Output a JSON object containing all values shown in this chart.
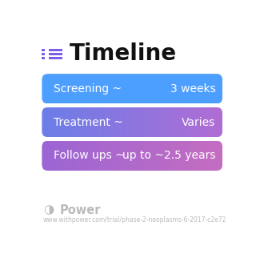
{
  "title": "Timeline",
  "title_fontsize": 20,
  "title_fontweight": "bold",
  "title_color": "#111111",
  "icon_color": "#7c5ce8",
  "background_color": "#ffffff",
  "rows": [
    {
      "label": "Screening ~",
      "value": "3 weeks",
      "color_left": "#4d9fff",
      "color_right": "#4d9fff"
    },
    {
      "label": "Treatment ~",
      "value": "Varies",
      "color_left": "#6b7de8",
      "color_right": "#b06cd4"
    },
    {
      "label": "Follow ups ~",
      "value": "up to ~2.5 years",
      "color_left": "#9b65d4",
      "color_right": "#c46dc0"
    }
  ],
  "row_text_color": "#ffffff",
  "row_label_fontsize": 10,
  "row_value_fontsize": 10,
  "footer_logo_color": "#bbbbbb",
  "footer_text": "Power",
  "footer_url": "www.withpower.com/trial/phase-2-neoplasms-6-2017-c2e72",
  "footer_fontsize": 5.5
}
